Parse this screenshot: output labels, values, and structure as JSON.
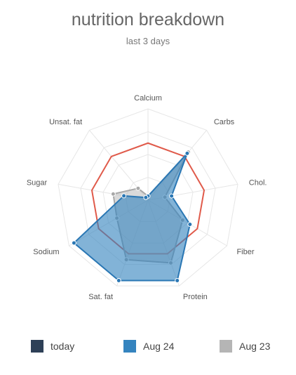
{
  "chart_data": {
    "type": "radar",
    "title": "nutrition breakdown",
    "subtitle": "last 3 days",
    "axes": [
      "Calcium",
      "Carbs",
      "Chol.",
      "Fiber",
      "Protein",
      "Sat. fat",
      "Sodium",
      "Sugar",
      "Unsat. fat"
    ],
    "range": [
      0,
      1.6
    ],
    "target": {
      "color": "#e05a4a",
      "values": [
        1,
        1,
        1,
        1,
        1,
        1,
        1,
        1,
        1
      ]
    },
    "series": [
      {
        "name": "today",
        "color": "#2e4057",
        "values": [
          0.07,
          1.07,
          0.42,
          0.85,
          1.5,
          1.5,
          1.5,
          0.43,
          0.06
        ]
      },
      {
        "name": "Aug 24",
        "color": "#3584bf",
        "values": [
          0.07,
          1.07,
          0.42,
          0.85,
          1.5,
          1.5,
          1.5,
          0.43,
          0.06
        ]
      },
      {
        "name": "Aug 23",
        "color": "#b5b5b5",
        "values": [
          0.07,
          1.1,
          0.3,
          0.7,
          1.17,
          1.11,
          0.63,
          0.62,
          0.27
        ]
      }
    ],
    "legend_position": "bottom"
  }
}
